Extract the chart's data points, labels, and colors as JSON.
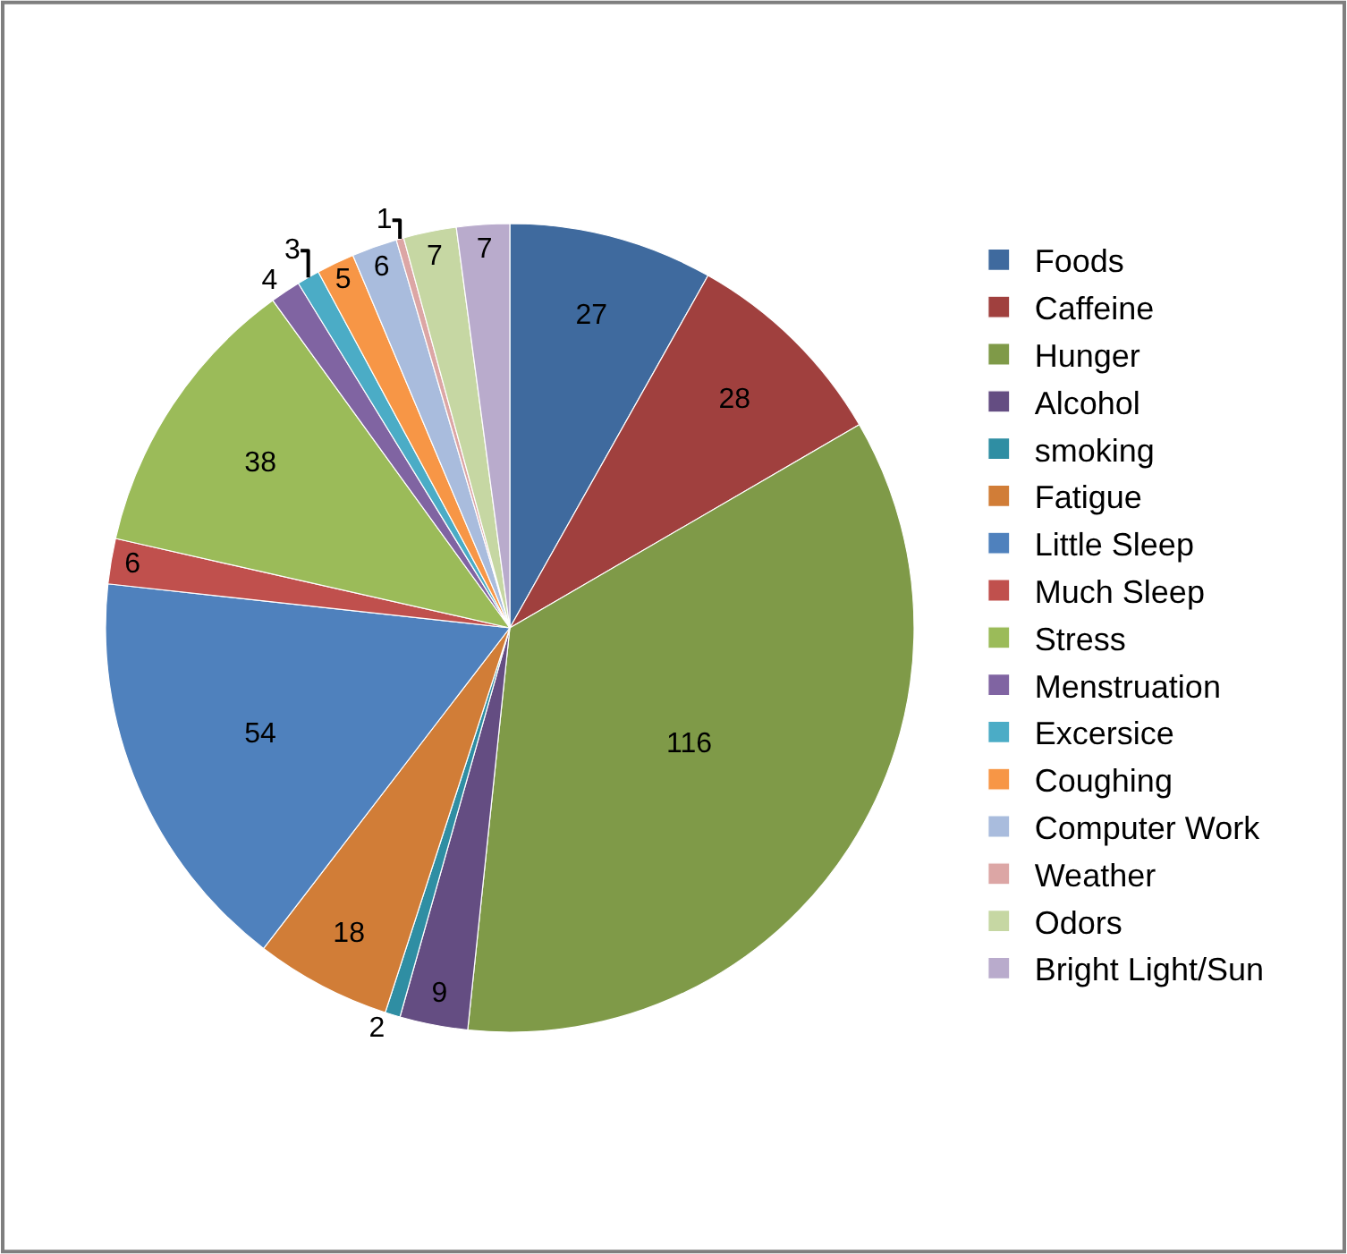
{
  "chart_data": {
    "type": "pie",
    "categories": [
      "Foods",
      "Caffeine",
      "Hunger",
      "Alcohol",
      "smoking",
      "Fatigue",
      "Little Sleep",
      "Much Sleep",
      "Stress",
      "Menstruation",
      "Excersice",
      "Coughing",
      "Computer Work",
      "Weather",
      "Odors",
      "Bright Light/Sun"
    ],
    "values": [
      27,
      28,
      116,
      9,
      2,
      18,
      54,
      6,
      38,
      4,
      3,
      5,
      6,
      1,
      7,
      7
    ],
    "colors": [
      "#3f6a9e",
      "#a0403e",
      "#7f9a48",
      "#644d82",
      "#2f8ea3",
      "#d17d37",
      "#4f81bd",
      "#c0504d",
      "#9bbb59",
      "#8064a2",
      "#4bacc6",
      "#f79646",
      "#a9bcdd",
      "#dca6a5",
      "#c6d7a3",
      "#b9abcc"
    ],
    "data_labels": true,
    "legend": "right"
  }
}
